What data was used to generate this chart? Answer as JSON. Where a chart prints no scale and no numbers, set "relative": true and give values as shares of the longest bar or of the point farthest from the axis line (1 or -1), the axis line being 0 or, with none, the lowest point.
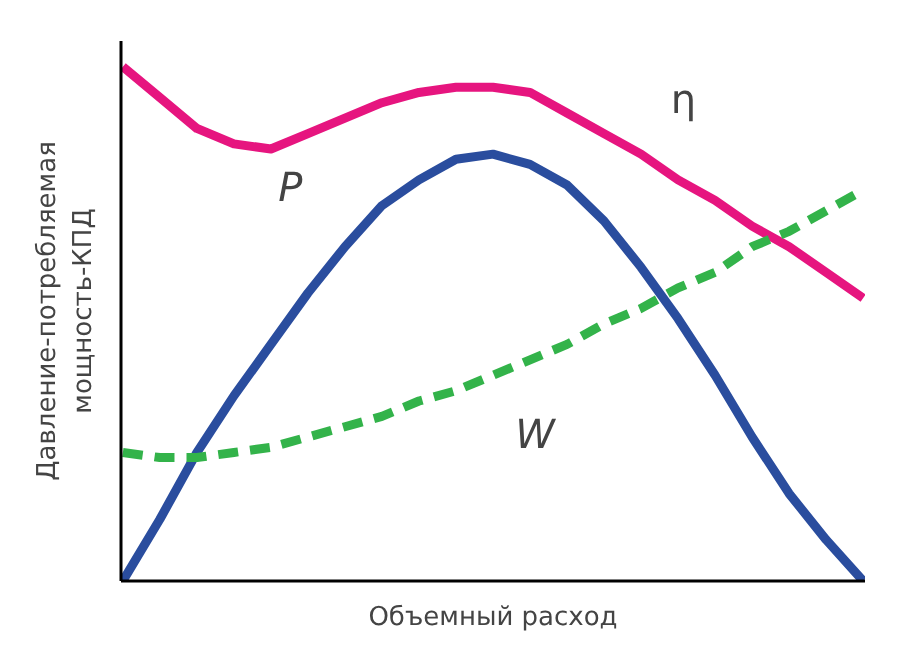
{
  "chart_data": {
    "type": "line",
    "relative": true,
    "xlabel": "Объемный расход",
    "ylabel": "Давление-потребляемая мощность-КПД",
    "grid": false,
    "marker": "none",
    "categories": [
      null,
      null,
      null,
      null,
      null,
      null,
      null,
      null,
      null,
      null,
      null,
      null,
      null,
      null,
      null,
      null,
      null,
      null,
      null,
      null,
      null
    ],
    "series": [
      {
        "color": "#e6157f",
        "line_style": "solid",
        "values": [
          1.0,
          0.94,
          0.88,
          0.85,
          0.84,
          0.87,
          0.9,
          0.93,
          0.95,
          0.96,
          0.96,
          0.95,
          0.91,
          0.87,
          0.83,
          0.78,
          0.74,
          0.69,
          0.65,
          0.6,
          0.55
        ]
      },
      {
        "color": "#2a4d9e",
        "line_style": "solid",
        "values": [
          0,
          0.12,
          0.25,
          0.36,
          0.46,
          0.56,
          0.65,
          0.73,
          0.78,
          0.82,
          0.83,
          0.81,
          0.77,
          0.7,
          0.61,
          0.51,
          0.4,
          0.28,
          0.17,
          0.08,
          0
        ]
      },
      {
        "color": "#33b34a",
        "line_style": "dashed",
        "values": [
          0.25,
          0.24,
          0.24,
          0.25,
          0.26,
          0.28,
          0.3,
          0.32,
          0.35,
          0.37,
          0.4,
          0.43,
          0.46,
          0.5,
          0.53,
          0.57,
          0.6,
          0.65,
          0.68,
          0.72,
          0.76
        ]
      }
    ],
    "annotations": [
      "P",
      "η",
      "W"
    ]
  }
}
